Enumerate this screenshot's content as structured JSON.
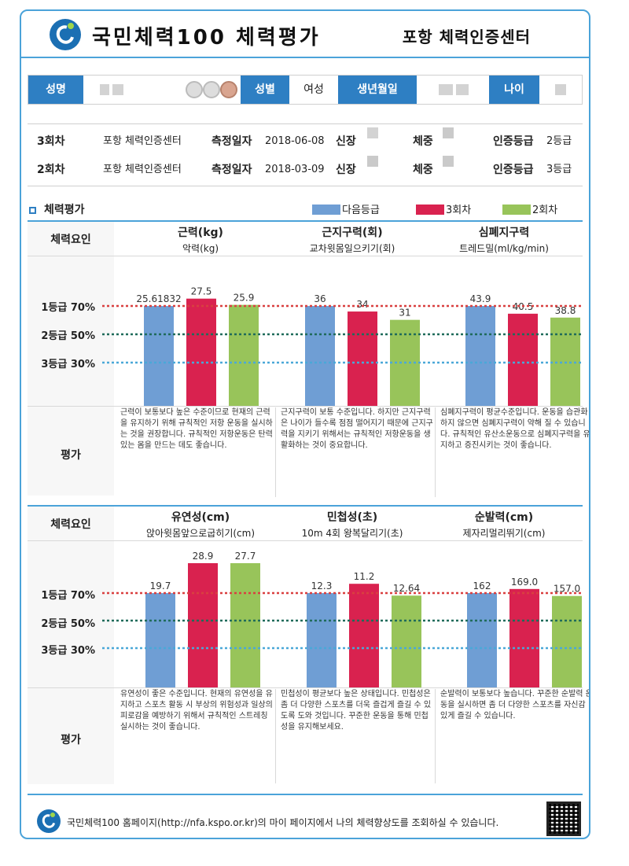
{
  "header": {
    "title": "국민체력100 체력평가",
    "center": "포항 체력인증센터"
  },
  "person": {
    "name_label": "성명",
    "gender_label": "성별",
    "gender_value": "여성",
    "birth_label": "생년월일",
    "age_label": "나이"
  },
  "records": [
    {
      "round": "3회차",
      "center": "포항 체력인증센터",
      "date_label": "측정일자",
      "date": "2018-06-08",
      "height_label": "신장",
      "weight_label": "체중",
      "grade_label": "인증등급",
      "grade": "2등급"
    },
    {
      "round": "2회차",
      "center": "포항 체력인증센터",
      "date_label": "측정일자",
      "date": "2018-03-09",
      "height_label": "신장",
      "weight_label": "체중",
      "grade_label": "인증등급",
      "grade": "3등급"
    }
  ],
  "section": {
    "title": "체력평가",
    "factor_label": "체력요인",
    "eval_label": "평가",
    "grade_lines": [
      "1등급 70%",
      "2등급 50%",
      "3등급 30%"
    ]
  },
  "colors": {
    "next_grade": "#6f9ed4",
    "round3": "#d9224f",
    "round2": "#98c45a",
    "line1": "#d94040",
    "line2": "#1f6b5a",
    "line3": "#4aa8d8",
    "accent": "#2e7fc3"
  },
  "chart_data": {
    "type": "bar",
    "legend": [
      "다음등급",
      "3회차",
      "2회차"
    ],
    "panels": [
      {
        "categories": [
          {
            "name": "근력(kg)",
            "sub": "악력(kg)",
            "values": [
              25.61832,
              27.5,
              25.9
            ],
            "labels": [
              "25.61832",
              "27.5",
              "25.9"
            ],
            "eval": "근력이 보통보다 높은 수준이므로 현재의 근력을 유지하기 위해 규칙적인 저항 운동을 실시하는 것을 권장합니다. 규칙적인 저항운동은 탄력 있는 몸을 만드는 데도 좋습니다."
          },
          {
            "name": "근지구력(회)",
            "sub": "교차윗몸일으키기(회)",
            "values": [
              36,
              34,
              31
            ],
            "labels": [
              "36",
              "34",
              "31"
            ],
            "eval": "근지구력이 보통 수준입니다. 하지만 근지구력은 나이가 들수록 점점 떨어지기 때문에 근지구력을 지키기 위해서는 규칙적인 저항운동을 생활화하는 것이 중요합니다."
          },
          {
            "name": "심폐지구력",
            "sub": "트레드밀(ml/kg/min)",
            "values": [
              43.9,
              40.5,
              38.8
            ],
            "labels": [
              "43.9",
              "40.5",
              "38.8"
            ],
            "eval": "심폐지구력이 평균수준입니다. 운동을 습관화 하지 않으면 심폐지구력이 약해 질 수 있습니다. 규칙적인 유산소운동으로 심폐지구력을 유지하고 증진시키는 것이 좋습니다."
          }
        ]
      },
      {
        "categories": [
          {
            "name": "유연성(cm)",
            "sub": "앉아윗몸앞으로굽히기(cm)",
            "values": [
              19.7,
              28.9,
              27.7
            ],
            "labels": [
              "19.7",
              "28.9",
              "27.7"
            ],
            "eval": "유연성이 좋은 수준입니다. 현재의 유연성을 유지하고 스포츠 활동 시 부상의 위험성과 일상의 피로감을 예방하기 위해서 규칙적인 스트레칭 실시하는 것이 좋습니다."
          },
          {
            "name": "민첩성(초)",
            "sub": "10m 4회 왕복달리기(초)",
            "values": [
              12.3,
              11.2,
              12.64
            ],
            "labels": [
              "12.3",
              "11.2",
              "12.64"
            ],
            "eval": "민첩성이 평균보다 높은 상태입니다. 민첩성은 좀 더 다양한 스포츠를 더욱 즐겁게 즐길 수 있도록 도와 것입니다. 꾸준한 운동을 통해 민첩성을 유지해보세요."
          },
          {
            "name": "순발력(cm)",
            "sub": "제자리멀리뛰기(cm)",
            "values": [
              162,
              169.0,
              157.0
            ],
            "labels": [
              "162",
              "169.0",
              "157.0"
            ],
            "eval": "순발력이 보통보다 높습니다. 꾸준한 순발력 운동을 실시하면 좀 더 다양한 스포츠를 자신감 있게 즐길 수 있습니다."
          }
        ]
      }
    ]
  },
  "footer": {
    "text": "국민체력100 홈페이지(http://nfa.kspo.or.kr)의 마이 페이지에서 나의 체력향상도를 조회하실 수 있습니다."
  }
}
